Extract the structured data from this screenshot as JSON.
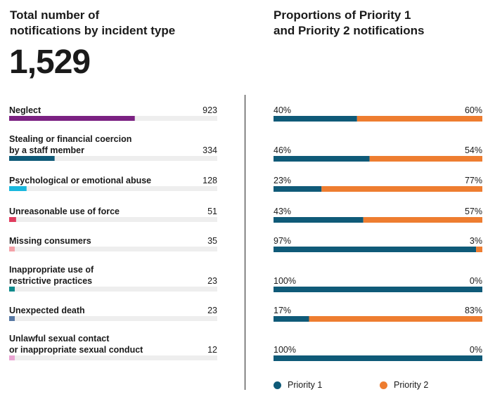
{
  "left_title": "Total number of\nnotifications by incident type",
  "right_title": "Proportions of Priority 1\nand Priority 2 notifications",
  "total": "1,529",
  "colors": {
    "priority1": "#0f5a78",
    "priority2": "#ee7d30",
    "track": "#eeeeee"
  },
  "chart_data": [
    {
      "type": "bar",
      "categories": [
        [
          "Neglect"
        ],
        [
          "Stealing or financial coercion",
          "by a staff member"
        ],
        [
          "Psychological or emotional abuse"
        ],
        [
          "Unreasonable use of force"
        ],
        [
          "Missing consumers"
        ],
        [
          "Inappropriate use of",
          "restrictive practices"
        ],
        [
          "Unexpected death"
        ],
        [
          "Unlawful sexual contact",
          "or inappropriate sexual conduct"
        ]
      ],
      "values": [
        923,
        334,
        128,
        51,
        35,
        23,
        23,
        12
      ],
      "value_labels": [
        "923",
        "334",
        "128",
        "51",
        "35",
        "23",
        "23",
        "12"
      ],
      "bar_colors": [
        "#7b2182",
        "#0f5a78",
        "#1ab8de",
        "#e03c5e",
        "#f4a2a8",
        "#0e8a8c",
        "#5878a4",
        "#e9a5d2"
      ],
      "xlim": [
        0,
        1529
      ]
    },
    {
      "type": "bar",
      "stacked": true,
      "categories": [
        "Neglect",
        "Stealing or financial coercion by a staff member",
        "Psychological or emotional abuse",
        "Unreasonable use of force",
        "Missing consumers",
        "Inappropriate use of restrictive practices",
        "Unexpected death",
        "Unlawful sexual contact or inappropriate sexual conduct"
      ],
      "series": [
        {
          "name": "Priority 1",
          "values": [
            40,
            46,
            23,
            43,
            97,
            100,
            17,
            100
          ],
          "labels": [
            "40%",
            "46%",
            "23%",
            "43%",
            "97%",
            "100%",
            "17%",
            "100%"
          ]
        },
        {
          "name": "Priority 2",
          "values": [
            60,
            54,
            77,
            57,
            3,
            0,
            83,
            0
          ],
          "labels": [
            "60%",
            "54%",
            "77%",
            "57%",
            "3%",
            "0%",
            "83%",
            "0%"
          ]
        }
      ],
      "xlim": [
        0,
        100
      ],
      "legend": "bottom"
    }
  ]
}
